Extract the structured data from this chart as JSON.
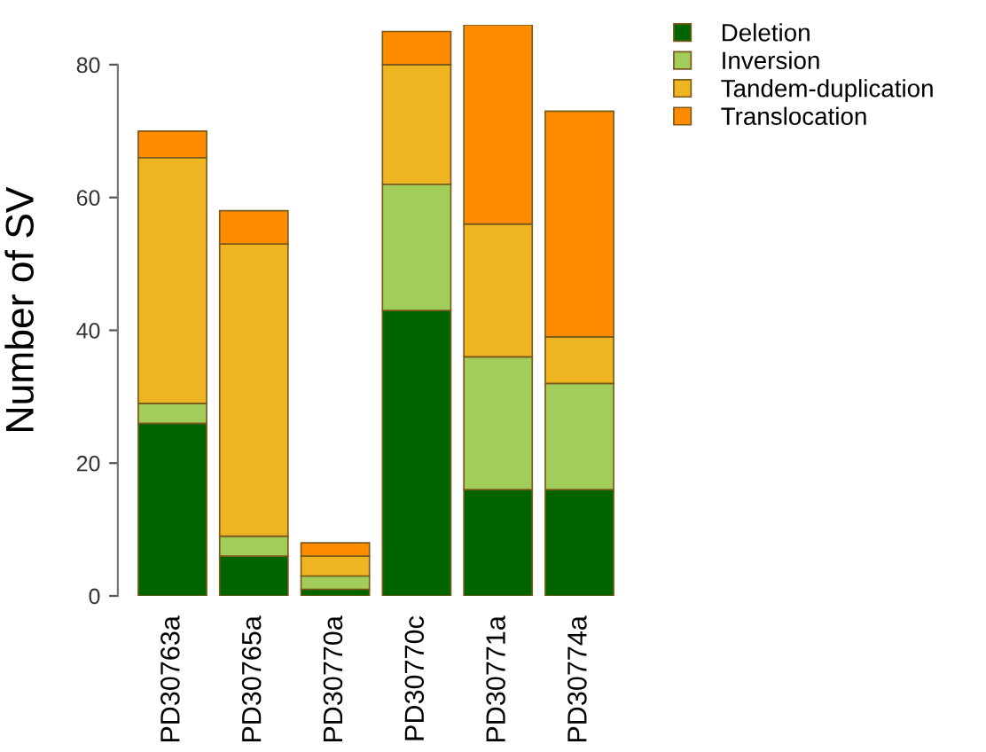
{
  "chart_data": {
    "type": "bar",
    "stacked": true,
    "ylabel": "Number of SV",
    "categories": [
      "PD30763a",
      "PD30765a",
      "PD30770a",
      "PD30770c",
      "PD30771a",
      "PD30774a"
    ],
    "series": [
      {
        "name": "Deletion",
        "color": "#006400",
        "values": [
          26,
          6,
          1,
          43,
          16,
          16
        ]
      },
      {
        "name": "Inversion",
        "color": "#a2cd5a",
        "values": [
          3,
          3,
          2,
          19,
          20,
          16
        ]
      },
      {
        "name": "Tandem-duplication",
        "color": "#eeb422",
        "values": [
          37,
          44,
          3,
          18,
          20,
          7
        ]
      },
      {
        "name": "Translocation",
        "color": "#ff8c00",
        "values": [
          4,
          5,
          2,
          5,
          30,
          34
        ]
      }
    ],
    "ylim": [
      0,
      86
    ],
    "yticks": [
      0,
      20,
      40,
      60,
      80
    ],
    "grid": false,
    "legend": "top right"
  }
}
